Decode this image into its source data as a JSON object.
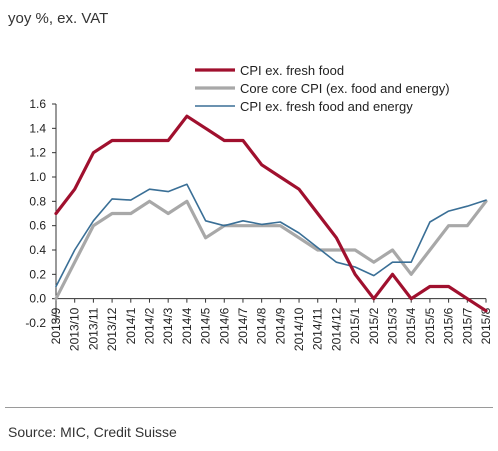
{
  "header": {
    "subtitle": "yoy %,  ex. VAT"
  },
  "footer": {
    "source": "Source: MIC, Credit Suisse"
  },
  "chart_data": {
    "type": "line",
    "x": [
      "2013/9",
      "2013/10",
      "2013/11",
      "2013/12",
      "2014/1",
      "2014/2",
      "2014/3",
      "2014/4",
      "2014/5",
      "2014/6",
      "2014/7",
      "2014/8",
      "2014/9",
      "2014/10",
      "2014/11",
      "2014/12",
      "2015/1",
      "2015/2",
      "2015/3",
      "2015/4",
      "2015/5",
      "2015/6",
      "2015/7",
      "2015/8"
    ],
    "ylim": [
      -0.2,
      1.6
    ],
    "yticks": [
      "-0.2",
      "0.0",
      "0.2",
      "0.4",
      "0.6",
      "0.8",
      "1.0",
      "1.2",
      "1.4",
      "1.6"
    ],
    "legend_position": "top-right",
    "grid": false,
    "series": [
      {
        "name": "CPI ex. fresh food",
        "color": "#a0102e",
        "values": [
          0.7,
          0.9,
          1.2,
          1.3,
          1.3,
          1.3,
          1.3,
          1.5,
          1.4,
          1.3,
          1.3,
          1.1,
          1.0,
          0.9,
          0.7,
          0.5,
          0.2,
          0.0,
          0.2,
          0.0,
          0.1,
          0.1,
          0.0,
          -0.1
        ]
      },
      {
        "name": "Core core CPI (ex. food and energy)",
        "color": "#a8a8a8",
        "values": [
          0.0,
          0.3,
          0.6,
          0.7,
          0.7,
          0.8,
          0.7,
          0.8,
          0.5,
          0.6,
          0.6,
          0.6,
          0.6,
          0.5,
          0.4,
          0.4,
          0.4,
          0.3,
          0.4,
          0.2,
          0.4,
          0.6,
          0.6,
          0.8
        ]
      },
      {
        "name": "CPI ex. fresh food and energy",
        "color": "#3a6f96",
        "values": [
          0.1,
          0.4,
          0.64,
          0.82,
          0.81,
          0.9,
          0.88,
          0.94,
          0.64,
          0.6,
          0.64,
          0.61,
          0.63,
          0.54,
          0.42,
          0.3,
          0.26,
          0.19,
          0.3,
          0.3,
          0.63,
          0.72,
          0.76,
          0.81
        ]
      }
    ]
  }
}
